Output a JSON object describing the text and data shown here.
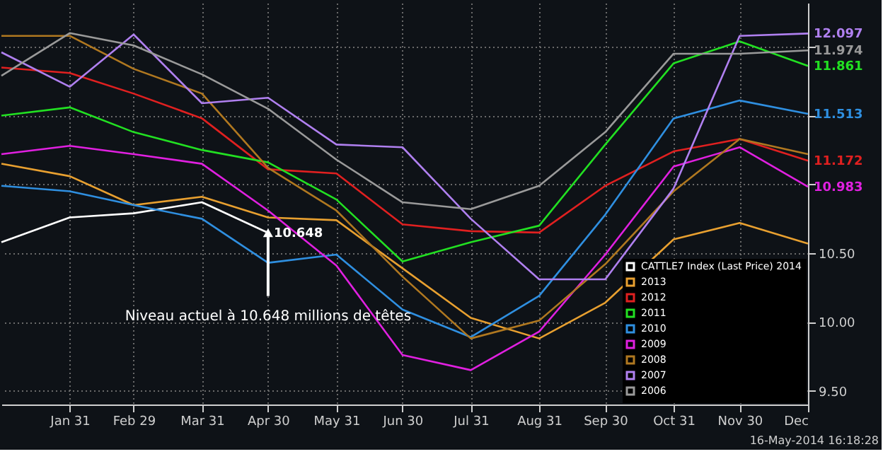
{
  "chart_data": {
    "type": "line",
    "x": [
      "2011-12-31",
      "2012-01-31",
      "2012-02-29",
      "2012-03-31",
      "2012-04-30",
      "2012-05-31",
      "2012-06-30",
      "2012-07-31",
      "2012-08-31",
      "2012-09-30",
      "2012-10-31",
      "2012-11-30",
      "2012-12-31"
    ],
    "xlim": [
      "2011-12-31",
      "2012-12-31"
    ],
    "xticks": [
      {
        "value": "2012-01-31",
        "label": "Jan 31"
      },
      {
        "value": "2012-02-29",
        "label": "Feb 29"
      },
      {
        "value": "2012-03-31",
        "label": "Mar 31"
      },
      {
        "value": "2012-04-30",
        "label": "Apr 30"
      },
      {
        "value": "2012-05-31",
        "label": "May 31"
      },
      {
        "value": "2012-06-30",
        "label": "Jun 30"
      },
      {
        "value": "2012-07-31",
        "label": "Jul 31"
      },
      {
        "value": "2012-08-31",
        "label": "Aug 31"
      },
      {
        "value": "2012-09-30",
        "label": "Sep 30"
      },
      {
        "value": "2012-10-31",
        "label": "Oct 31"
      },
      {
        "value": "2012-11-30",
        "label": "Nov 30"
      },
      {
        "value": "2012-12-31",
        "label": "Dec"
      }
    ],
    "ylim": [
      9.4,
      12.32
    ],
    "yticks": [
      {
        "value": 9.5,
        "label": "9.50"
      },
      {
        "value": 10,
        "label": "10.00"
      },
      {
        "value": 10.5,
        "label": "10.50"
      },
      {
        "value": 11,
        "label": null
      },
      {
        "value": 11.5,
        "label": null
      },
      {
        "value": 12,
        "label": null
      }
    ],
    "series": [
      {
        "name": "CATTLE7 Index (Last Price) 2014",
        "color": "#ffffff",
        "x": [
          "2011-12-31",
          "2012-01-31",
          "2012-02-29",
          "2012-03-31",
          "2012-04-30"
        ],
        "values": [
          10.58,
          10.76,
          10.79,
          10.87,
          10.648
        ],
        "value_labels": [
          null,
          null,
          null,
          null,
          "10.648"
        ]
      },
      {
        "name": "2013",
        "color": "#e8a030",
        "values": [
          11.15,
          11.06,
          10.85,
          10.91,
          10.76,
          10.74,
          10.39,
          10.03,
          9.88,
          10.14,
          10.6,
          10.72,
          10.57
        ],
        "value_labels": [
          null,
          null,
          null,
          null,
          null,
          null,
          null,
          null,
          null,
          null,
          null,
          null,
          null
        ]
      },
      {
        "name": "2012",
        "color": "#e02020",
        "values": [
          11.85,
          11.81,
          11.66,
          11.48,
          11.11,
          11.08,
          10.71,
          10.66,
          10.65,
          10.99,
          11.24,
          11.33,
          11.172
        ],
        "value_labels": [
          null,
          null,
          null,
          null,
          null,
          null,
          null,
          null,
          null,
          null,
          null,
          null,
          "11.172"
        ]
      },
      {
        "name": "2011",
        "color": "#22e022",
        "values": [
          11.5,
          11.56,
          11.38,
          11.25,
          11.16,
          10.89,
          10.44,
          10.58,
          10.7,
          11.29,
          11.88,
          12.04,
          11.861
        ],
        "value_labels": [
          null,
          null,
          null,
          null,
          null,
          null,
          null,
          null,
          null,
          null,
          null,
          null,
          "11.861"
        ]
      },
      {
        "name": "2010",
        "color": "#2f8fe0",
        "values": [
          10.99,
          10.95,
          10.85,
          10.75,
          10.43,
          10.49,
          10.09,
          9.89,
          10.19,
          10.78,
          11.48,
          11.61,
          11.513
        ],
        "value_labels": [
          null,
          null,
          null,
          null,
          null,
          null,
          null,
          null,
          null,
          null,
          null,
          null,
          "11.513"
        ]
      },
      {
        "name": "2009",
        "color": "#e020e0",
        "values": [
          11.22,
          11.28,
          11.22,
          11.15,
          10.81,
          10.41,
          9.76,
          9.65,
          9.93,
          10.49,
          11.13,
          11.27,
          10.983
        ],
        "value_labels": [
          null,
          null,
          null,
          null,
          null,
          null,
          null,
          null,
          null,
          null,
          null,
          null,
          "10.983"
        ]
      },
      {
        "name": "2008",
        "color": "#b07820",
        "values": [
          12.08,
          12.08,
          11.84,
          11.66,
          11.12,
          10.81,
          10.33,
          9.88,
          10.01,
          10.42,
          10.95,
          11.33,
          11.22
        ],
        "value_labels": [
          null,
          null,
          null,
          null,
          null,
          null,
          null,
          null,
          null,
          null,
          null,
          null,
          null
        ]
      },
      {
        "name": "2007",
        "color": "#b080f0",
        "values": [
          11.96,
          11.71,
          12.09,
          11.59,
          11.63,
          11.29,
          11.27,
          10.75,
          10.31,
          10.31,
          10.97,
          12.08,
          12.097
        ],
        "value_labels": [
          null,
          null,
          null,
          null,
          null,
          null,
          null,
          null,
          null,
          null,
          null,
          null,
          "12.097"
        ]
      },
      {
        "name": "2006",
        "color": "#9a9a9a",
        "values": [
          11.79,
          12.1,
          12.01,
          11.8,
          11.55,
          11.18,
          10.87,
          10.82,
          10.99,
          11.38,
          11.95,
          11.95,
          11.974
        ],
        "value_labels": [
          null,
          null,
          null,
          null,
          null,
          null,
          null,
          null,
          null,
          null,
          null,
          null,
          "11.974"
        ]
      }
    ],
    "annotations": [
      {
        "text": "Niveau actuel à 10.648 millions de têtes",
        "x": "2012-04-30",
        "y": 10.648
      },
      "16-May-2014 16:18:28"
    ],
    "grid": true,
    "legend": "bottom right",
    "marker": "none",
    "line_style": "solid"
  }
}
